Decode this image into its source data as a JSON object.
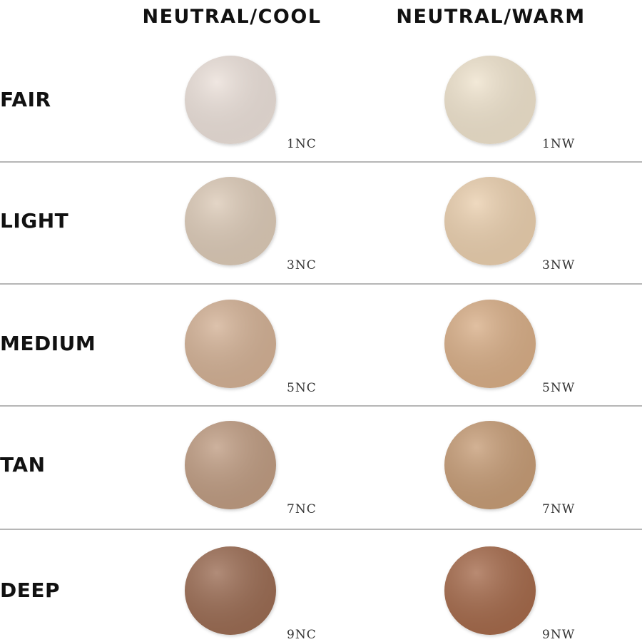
{
  "header": {
    "columns": [
      "NEUTRAL/COOL",
      "NEUTRAL/WARM"
    ]
  },
  "rows": [
    {
      "label": "FAIR",
      "shades": [
        "1NC",
        "1NW"
      ]
    },
    {
      "label": "LIGHT",
      "shades": [
        "3NC",
        "3NW"
      ]
    },
    {
      "label": "MEDIUM",
      "shades": [
        "5NC",
        "5NW"
      ]
    },
    {
      "label": "TAN",
      "shades": [
        "7NC",
        "7NW"
      ]
    },
    {
      "label": "DEEP",
      "shades": [
        "9NC",
        "9NW"
      ]
    }
  ]
}
